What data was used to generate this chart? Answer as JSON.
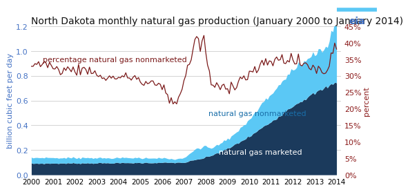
{
  "title": "North Dakota monthly natural gas production (January 2000 to January 2014)",
  "ylabel_left": "billion cubic feet per day",
  "ylabel_right": "percent",
  "ylim_left": [
    0,
    1.2
  ],
  "ylim_right": [
    0,
    0.45
  ],
  "yticks_left": [
    0.0,
    0.2,
    0.4,
    0.6,
    0.8,
    1.0,
    1.2
  ],
  "yticks_right_vals": [
    0.0,
    0.05,
    0.1,
    0.15,
    0.2,
    0.25,
    0.3,
    0.35,
    0.4,
    0.45
  ],
  "yticks_right_labels": [
    "0%",
    "5%",
    "10%",
    "15%",
    "20%",
    "25%",
    "30%",
    "35%",
    "40%",
    "45%"
  ],
  "xtick_labels": [
    "2000",
    "2001",
    "2002",
    "2003",
    "2004",
    "2005",
    "2006",
    "2007",
    "2008",
    "2009",
    "2010",
    "2011",
    "2012",
    "2013",
    "2014"
  ],
  "color_marketed": "#1b3a5c",
  "color_nonmarketed": "#5bc8f5",
  "color_pct_line": "#7b1a1a",
  "label_marketed": "natural gas marketed",
  "label_nonmarketed": "natural gas nonmarketed",
  "label_pct": "percentage natural gas nonmarketed",
  "background_color": "#ffffff",
  "axis_label_color": "#4472c4",
  "right_axis_color": "#8b1a1a",
  "title_fontsize": 10,
  "annotation_fontsize": 8
}
